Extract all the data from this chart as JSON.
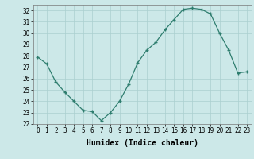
{
  "x": [
    0,
    1,
    2,
    3,
    4,
    5,
    6,
    7,
    8,
    9,
    10,
    11,
    12,
    13,
    14,
    15,
    16,
    17,
    18,
    19,
    20,
    21,
    22,
    23
  ],
  "y": [
    27.9,
    27.3,
    25.7,
    24.8,
    24.0,
    23.2,
    23.1,
    22.3,
    23.0,
    24.0,
    25.5,
    27.4,
    28.5,
    29.2,
    30.3,
    31.2,
    32.1,
    32.2,
    32.1,
    31.7,
    30.0,
    28.5,
    26.5,
    26.6
  ],
  "xlim": [
    -0.5,
    23.5
  ],
  "ylim": [
    22,
    32.5
  ],
  "yticks": [
    22,
    23,
    24,
    25,
    26,
    27,
    28,
    29,
    30,
    31,
    32
  ],
  "xticks": [
    0,
    1,
    2,
    3,
    4,
    5,
    6,
    7,
    8,
    9,
    10,
    11,
    12,
    13,
    14,
    15,
    16,
    17,
    18,
    19,
    20,
    21,
    22,
    23
  ],
  "xlabel": "Humidex (Indice chaleur)",
  "line_color": "#2e7d6e",
  "marker": "+",
  "bg_color": "#cce8e8",
  "grid_color": "#aacfcf",
  "tick_label_fontsize": 5.5,
  "xlabel_fontsize": 7.0
}
